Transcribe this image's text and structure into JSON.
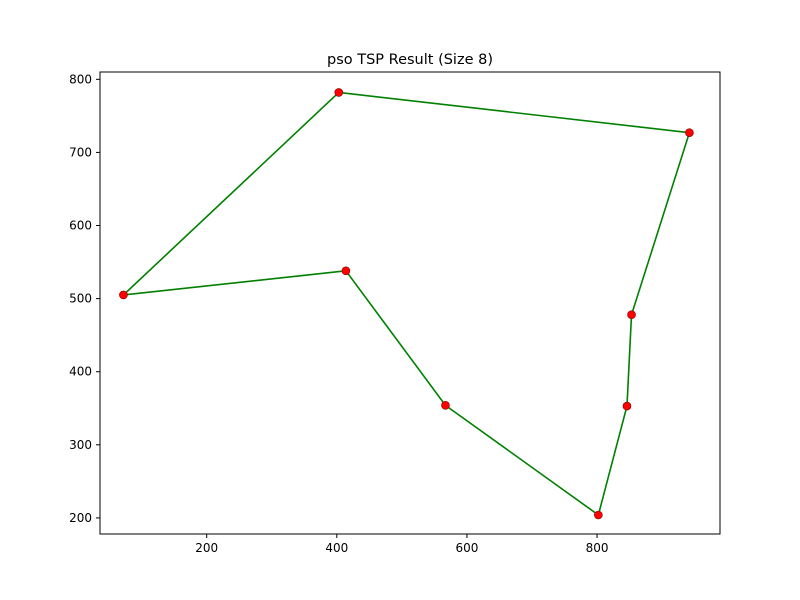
{
  "chart_data": {
    "type": "line",
    "title": "pso TSP Result (Size 8)",
    "xlabel": "",
    "ylabel": "",
    "xlim": [
      36,
      989
    ],
    "ylim": [
      178,
      810
    ],
    "xticks": [
      200,
      400,
      600,
      800
    ],
    "yticks": [
      200,
      300,
      400,
      500,
      600,
      700,
      800
    ],
    "grid": false,
    "legend": "none",
    "line_color": "#008000",
    "point_color": "#ff0000",
    "point_edge_color": "#800000",
    "cities": [
      {
        "x": 72,
        "y": 505
      },
      {
        "x": 403,
        "y": 782
      },
      {
        "x": 942,
        "y": 727
      },
      {
        "x": 853,
        "y": 478
      },
      {
        "x": 846,
        "y": 353
      },
      {
        "x": 802,
        "y": 204
      },
      {
        "x": 567,
        "y": 354
      },
      {
        "x": 414,
        "y": 538
      }
    ],
    "route_order": [
      0,
      1,
      2,
      3,
      4,
      5,
      6,
      7,
      0
    ]
  }
}
